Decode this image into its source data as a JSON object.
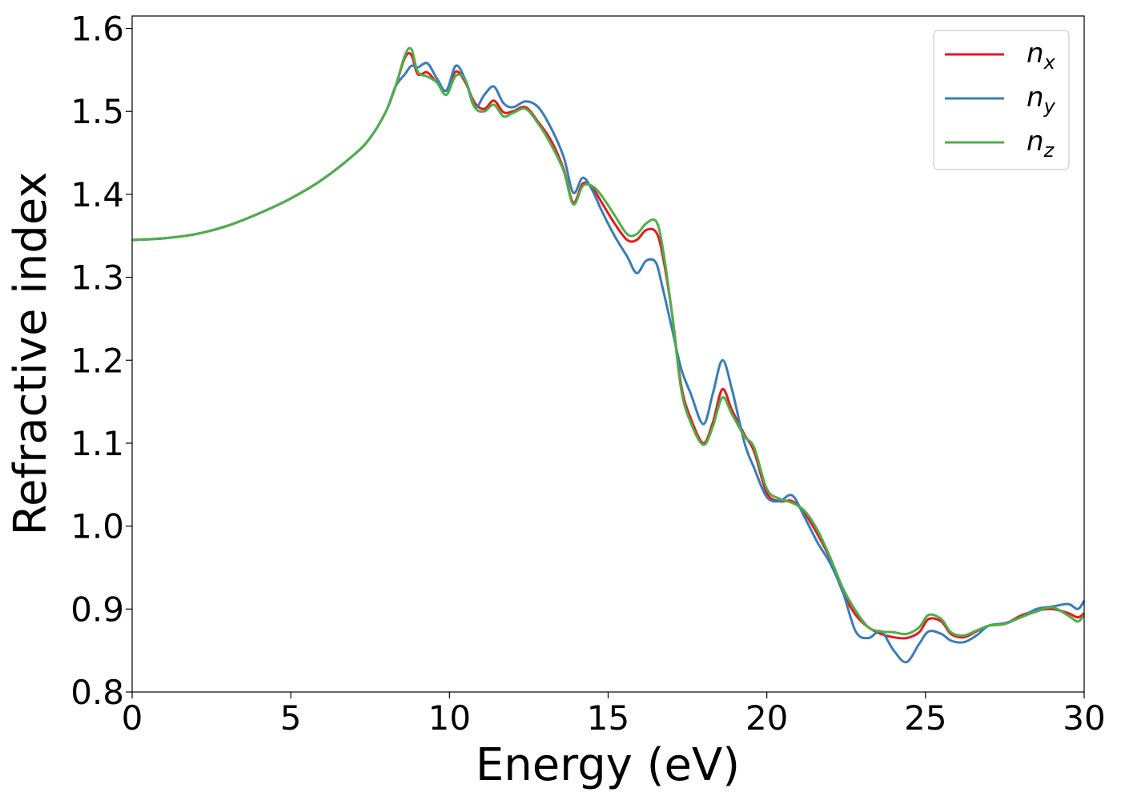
{
  "chart_data": {
    "type": "line",
    "xlabel": "Energy (eV)",
    "ylabel": "Refractive index",
    "xlim": [
      0,
      30
    ],
    "ylim": [
      0.8,
      1.615
    ],
    "xticks": [
      0,
      5,
      10,
      15,
      20,
      25,
      30
    ],
    "xtick_labels": [
      "0",
      "5",
      "10",
      "15",
      "20",
      "25",
      "30"
    ],
    "yticks": [
      0.8,
      0.9,
      1.0,
      1.1,
      1.2,
      1.3,
      1.4,
      1.5,
      1.6
    ],
    "ytick_labels": [
      "0.8",
      "0.9",
      "1.0",
      "1.1",
      "1.2",
      "1.3",
      "1.4",
      "1.5",
      "1.6"
    ],
    "grid": false,
    "legend_position": "top-right",
    "series": [
      {
        "name": "n_x",
        "base": "n",
        "sub": "x",
        "color": "#e41a1c",
        "x": [
          0,
          1,
          2,
          3,
          4,
          5,
          6,
          7,
          7.5,
          8,
          8.3,
          8.6,
          8.8,
          9.0,
          9.3,
          9.6,
          9.9,
          10.2,
          10.5,
          10.8,
          11.1,
          11.4,
          11.7,
          12.0,
          12.4,
          12.8,
          13.2,
          13.6,
          13.9,
          14.2,
          14.5,
          14.8,
          15.2,
          15.6,
          15.9,
          16.2,
          16.5,
          16.7,
          17.0,
          17.3,
          17.6,
          18.0,
          18.3,
          18.6,
          18.9,
          19.3,
          19.6,
          20.0,
          20.4,
          20.8,
          21.2,
          21.6,
          22.0,
          22.4,
          22.8,
          23.2,
          23.6,
          24.0,
          24.4,
          24.8,
          25.1,
          25.5,
          25.8,
          26.2,
          26.6,
          27.0,
          27.5,
          28.0,
          28.5,
          29.0,
          29.5,
          29.8,
          30.0
        ],
        "y": [
          1.345,
          1.347,
          1.352,
          1.362,
          1.377,
          1.395,
          1.418,
          1.448,
          1.468,
          1.5,
          1.53,
          1.565,
          1.568,
          1.545,
          1.547,
          1.535,
          1.525,
          1.548,
          1.535,
          1.51,
          1.503,
          1.513,
          1.499,
          1.5,
          1.505,
          1.487,
          1.465,
          1.43,
          1.39,
          1.413,
          1.408,
          1.39,
          1.365,
          1.345,
          1.345,
          1.357,
          1.355,
          1.33,
          1.26,
          1.17,
          1.13,
          1.1,
          1.125,
          1.165,
          1.14,
          1.11,
          1.09,
          1.04,
          1.03,
          1.03,
          1.015,
          0.99,
          0.96,
          0.92,
          0.893,
          0.878,
          0.87,
          0.866,
          0.865,
          0.872,
          0.888,
          0.885,
          0.87,
          0.866,
          0.873,
          0.88,
          0.882,
          0.892,
          0.898,
          0.9,
          0.895,
          0.89,
          0.895
        ]
      },
      {
        "name": "n_y",
        "base": "n",
        "sub": "y",
        "color": "#377eb8",
        "x": [
          0,
          1,
          2,
          3,
          4,
          5,
          6,
          7,
          7.5,
          8,
          8.3,
          8.6,
          8.8,
          9.0,
          9.3,
          9.6,
          9.9,
          10.2,
          10.5,
          10.8,
          11.1,
          11.4,
          11.7,
          12.0,
          12.4,
          12.8,
          13.2,
          13.6,
          13.9,
          14.2,
          14.5,
          14.8,
          15.2,
          15.6,
          15.9,
          16.2,
          16.5,
          16.7,
          17.0,
          17.3,
          17.6,
          18.0,
          18.3,
          18.6,
          18.9,
          19.3,
          19.6,
          20.0,
          20.4,
          20.8,
          21.2,
          21.6,
          22.0,
          22.4,
          22.8,
          23.2,
          23.6,
          24.0,
          24.4,
          24.8,
          25.1,
          25.5,
          25.8,
          26.2,
          26.6,
          27.0,
          27.5,
          28.0,
          28.5,
          29.0,
          29.5,
          29.8,
          30.0
        ],
        "y": [
          1.345,
          1.347,
          1.352,
          1.362,
          1.377,
          1.395,
          1.418,
          1.448,
          1.468,
          1.5,
          1.53,
          1.545,
          1.555,
          1.553,
          1.558,
          1.54,
          1.525,
          1.555,
          1.538,
          1.505,
          1.52,
          1.53,
          1.51,
          1.505,
          1.512,
          1.505,
          1.48,
          1.445,
          1.402,
          1.42,
          1.405,
          1.38,
          1.35,
          1.325,
          1.305,
          1.32,
          1.318,
          1.29,
          1.24,
          1.19,
          1.16,
          1.123,
          1.16,
          1.2,
          1.165,
          1.1,
          1.07,
          1.035,
          1.03,
          1.037,
          1.01,
          0.98,
          0.955,
          0.92,
          0.873,
          0.865,
          0.873,
          0.85,
          0.836,
          0.858,
          0.873,
          0.87,
          0.862,
          0.86,
          0.868,
          0.88,
          0.883,
          0.89,
          0.9,
          0.903,
          0.906,
          0.9,
          0.91
        ]
      },
      {
        "name": "n_z",
        "base": "n",
        "sub": "z",
        "color": "#4daf4a",
        "x": [
          0,
          1,
          2,
          3,
          4,
          5,
          6,
          7,
          7.5,
          8,
          8.3,
          8.6,
          8.8,
          9.0,
          9.3,
          9.6,
          9.9,
          10.2,
          10.5,
          10.8,
          11.1,
          11.4,
          11.7,
          12.0,
          12.4,
          12.8,
          13.2,
          13.6,
          13.9,
          14.2,
          14.5,
          14.8,
          15.2,
          15.6,
          15.9,
          16.2,
          16.5,
          16.7,
          17.0,
          17.3,
          17.6,
          18.0,
          18.3,
          18.6,
          18.9,
          19.3,
          19.6,
          20.0,
          20.4,
          20.8,
          21.2,
          21.6,
          22.0,
          22.4,
          22.8,
          23.2,
          23.6,
          24.0,
          24.4,
          24.8,
          25.1,
          25.5,
          25.8,
          26.2,
          26.6,
          27.0,
          27.5,
          28.0,
          28.5,
          29.0,
          29.5,
          29.8,
          30.0
        ],
        "y": [
          1.345,
          1.347,
          1.352,
          1.362,
          1.377,
          1.395,
          1.418,
          1.448,
          1.468,
          1.5,
          1.53,
          1.568,
          1.575,
          1.548,
          1.542,
          1.535,
          1.52,
          1.543,
          1.538,
          1.505,
          1.5,
          1.508,
          1.494,
          1.498,
          1.503,
          1.485,
          1.46,
          1.428,
          1.388,
          1.41,
          1.41,
          1.398,
          1.375,
          1.352,
          1.352,
          1.365,
          1.368,
          1.34,
          1.26,
          1.165,
          1.125,
          1.098,
          1.12,
          1.155,
          1.135,
          1.108,
          1.095,
          1.045,
          1.033,
          1.028,
          1.018,
          0.995,
          0.962,
          0.925,
          0.898,
          0.878,
          0.873,
          0.872,
          0.87,
          0.878,
          0.893,
          0.888,
          0.872,
          0.868,
          0.874,
          0.88,
          0.882,
          0.89,
          0.897,
          0.902,
          0.892,
          0.885,
          0.893
        ]
      }
    ]
  }
}
